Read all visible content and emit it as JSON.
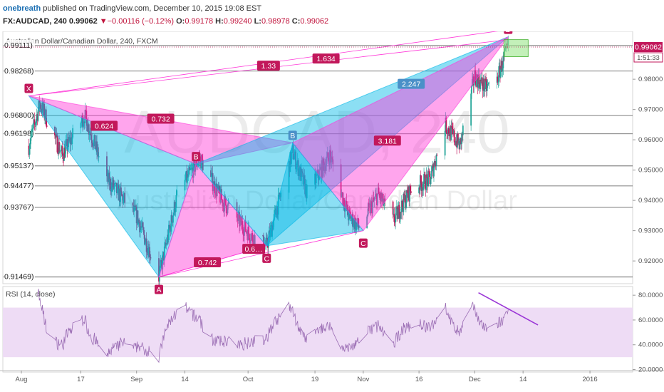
{
  "header": {
    "author": "onebreath",
    "published": "published on TradingView.com, December 10, 2015 19:08 EST",
    "symbol": "FX:AUDCAD, 240",
    "last": "0.99062",
    "change": "▼−0.00116 (−0.12%)",
    "o_label": "O:",
    "o_value": "0.99178",
    "h_label": "H:",
    "h_value": "0.99240",
    "l_label": "L:",
    "l_value": "0.98978",
    "c_label": "C:",
    "c_value": "0.99062"
  },
  "colors": {
    "bull": "#26a69a",
    "bear": "#c2185b",
    "pattern_blue": "#00b8e6",
    "pattern_pink": "#ff38d8",
    "label_pink": "#c2185b",
    "label_blue": "#4a90c8",
    "rsi": "#9c6fb5",
    "rsi_band": "#eedcf5",
    "trend": "#9a35d6"
  },
  "chart_data": [
    {
      "type": "candlestick",
      "title": "Australian Dollar/Canadian Dollar, 240, FXCM",
      "watermark_symbol": "AUDCAD, 240",
      "watermark_name": "Australian Dollar/Canadian Dollar",
      "x_ticks": [
        "Aug",
        "17",
        "Sep",
        "14",
        "Oct",
        "19",
        "Nov",
        "16",
        "Dec",
        "14",
        "2016"
      ],
      "y_ticks": [
        "0.98000",
        "0.97000",
        "0.96000",
        "0.95000",
        "0.94000",
        "0.93000",
        "0.92000"
      ],
      "ylim": [
        0.9125,
        0.9958
      ],
      "last_price": "0.99062",
      "countdown": "1:51:33",
      "levels": [
        "0.99111)",
        "0.98268)",
        "0.96800)",
        "0.96198)",
        "0.95137)",
        "0.94477)",
        "0.93767)",
        "0.91469)"
      ],
      "swings": [
        {
          "date": "2015-08-03",
          "close": 0.958
        },
        {
          "date": "2015-08-06",
          "close": 0.972
        },
        {
          "date": "2015-08-12",
          "close": 0.955
        },
        {
          "date": "2015-08-18",
          "close": 0.968
        },
        {
          "date": "2015-08-24",
          "close": 0.947
        },
        {
          "date": "2015-09-01",
          "close": 0.935
        },
        {
          "date": "2015-09-07",
          "close": 0.9147
        },
        {
          "date": "2015-09-12",
          "close": 0.942
        },
        {
          "date": "2015-09-18",
          "close": 0.954
        },
        {
          "date": "2015-09-24",
          "close": 0.94
        },
        {
          "date": "2015-10-02",
          "close": 0.928
        },
        {
          "date": "2015-10-06",
          "close": 0.925
        },
        {
          "date": "2015-10-13",
          "close": 0.956
        },
        {
          "date": "2015-10-17",
          "close": 0.942
        },
        {
          "date": "2015-10-23",
          "close": 0.955
        },
        {
          "date": "2015-10-28",
          "close": 0.935
        },
        {
          "date": "2015-10-31",
          "close": 0.931
        },
        {
          "date": "2015-11-05",
          "close": 0.942
        },
        {
          "date": "2015-11-09",
          "close": 0.933
        },
        {
          "date": "2015-11-14",
          "close": 0.944
        },
        {
          "date": "2015-11-19",
          "close": 0.947
        },
        {
          "date": "2015-11-23",
          "close": 0.965
        },
        {
          "date": "2015-11-27",
          "close": 0.958
        },
        {
          "date": "2015-12-01",
          "close": 0.981
        },
        {
          "date": "2015-12-04",
          "close": 0.977
        },
        {
          "date": "2015-12-07",
          "close": 0.98
        },
        {
          "date": "2015-12-10",
          "close": 0.99062
        }
      ],
      "harmonic": {
        "points": [
          {
            "label": "X",
            "date": "2015-08-03",
            "price": 0.9745
          },
          {
            "label": "A",
            "date": "2015-09-07",
            "price": 0.9147
          },
          {
            "label": "B",
            "date": "2015-09-17",
            "price": 0.952
          },
          {
            "label": "C",
            "date": "2015-10-06",
            "price": 0.925
          },
          {
            "label": "D",
            "date": "2015-12-10",
            "price": 0.994
          }
        ],
        "ratios": [
          "0.624",
          "0.732",
          "0.742",
          "0.6…",
          "1.33",
          "1.634",
          "3.181",
          "2.247"
        ],
        "second_points": [
          {
            "label": "B",
            "date": "2015-10-13",
            "price": 0.959
          },
          {
            "label": "C",
            "date": "2015-11-01",
            "price": 0.93
          }
        ]
      }
    },
    {
      "type": "line",
      "title": "RSI (14, close)",
      "y_ticks": [
        "80.0000",
        "60.0000",
        "40.0000",
        "20.0000"
      ],
      "ylim": [
        18,
        87
      ],
      "band": [
        30,
        70
      ],
      "trendline": [
        {
          "date": "2015-12-02",
          "value": 82
        },
        {
          "date": "2015-12-18",
          "value": 56
        }
      ]
    }
  ]
}
